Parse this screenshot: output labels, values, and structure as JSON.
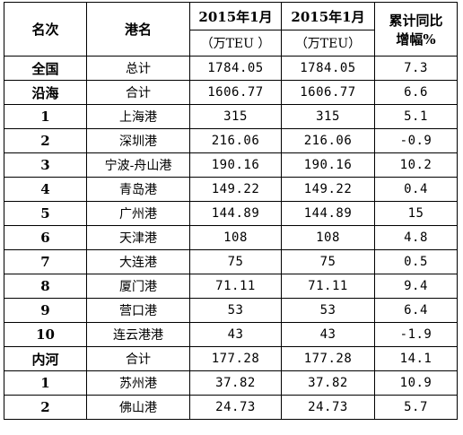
{
  "header": {
    "col_rank": "名次",
    "col_port": "港名",
    "col_jan1": "2015年1月",
    "col_jan1_unit": "（万TEU ）",
    "col_jan2": "2015年1月",
    "col_jan2_unit": "（万TEU）",
    "col_growth_line1": "累计同比",
    "col_growth_line2": "增幅%"
  },
  "rows": [
    {
      "rank": "全国",
      "port": "总计",
      "v1": "1784.05",
      "v2": "1784.05",
      "growth": "7.3"
    },
    {
      "rank": "沿海",
      "port": "合计",
      "v1": "1606.77",
      "v2": "1606.77",
      "growth": "6.6"
    },
    {
      "rank": "1",
      "port": "上海港",
      "v1": "315",
      "v2": "315",
      "growth": "5.1"
    },
    {
      "rank": "2",
      "port": "深圳港",
      "v1": "216.06",
      "v2": "216.06",
      "growth": "-0.9"
    },
    {
      "rank": "3",
      "port": "宁波-舟山港",
      "v1": "190.16",
      "v2": "190.16",
      "growth": "10.2"
    },
    {
      "rank": "4",
      "port": "青岛港",
      "v1": "149.22",
      "v2": "149.22",
      "growth": "0.4"
    },
    {
      "rank": "5",
      "port": "广州港",
      "v1": "144.89",
      "v2": "144.89",
      "growth": "15"
    },
    {
      "rank": "6",
      "port": "天津港",
      "v1": "108",
      "v2": "108",
      "growth": "4.8"
    },
    {
      "rank": "7",
      "port": "大连港",
      "v1": "75",
      "v2": "75",
      "growth": "0.5"
    },
    {
      "rank": "8",
      "port": "厦门港",
      "v1": "71.11",
      "v2": "71.11",
      "growth": "9.4"
    },
    {
      "rank": "9",
      "port": "营口港",
      "v1": "53",
      "v2": "53",
      "growth": "6.4"
    },
    {
      "rank": "10",
      "port": "连云港港",
      "v1": "43",
      "v2": "43",
      "growth": "-1.9"
    },
    {
      "rank": "内河",
      "port": "合计",
      "v1": "177.28",
      "v2": "177.28",
      "growth": "14.1"
    },
    {
      "rank": "1",
      "port": "苏州港",
      "v1": "37.82",
      "v2": "37.82",
      "growth": "10.9"
    },
    {
      "rank": "2",
      "port": "佛山港",
      "v1": "24.73",
      "v2": "24.73",
      "growth": "5.7"
    }
  ]
}
